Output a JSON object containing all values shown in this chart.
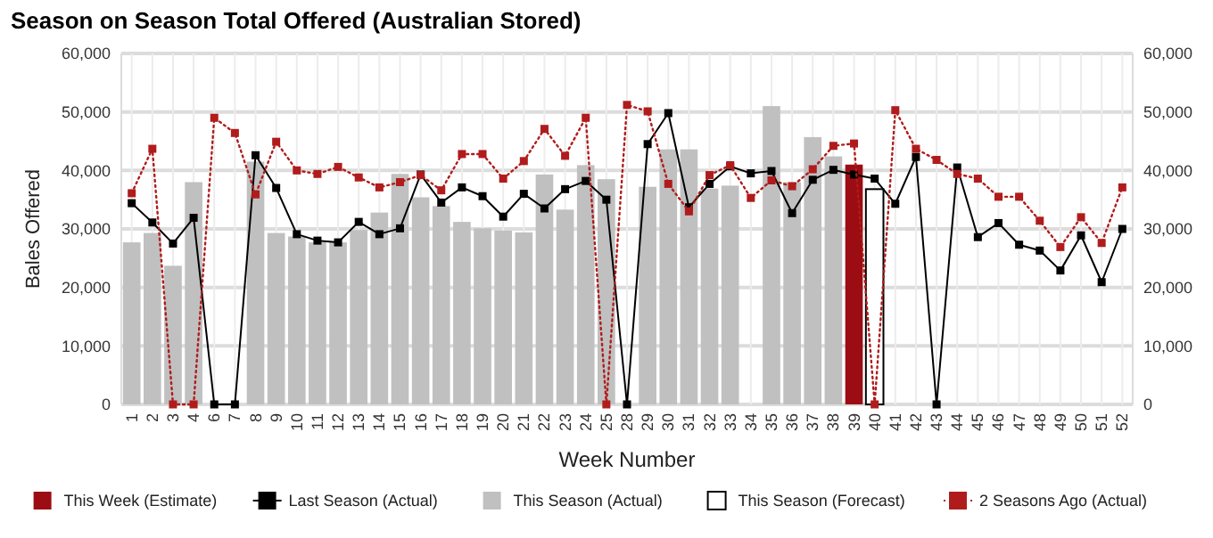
{
  "chart_data": {
    "type": "bar",
    "title": "Season on Season Total Offered (Australian Stored)",
    "xlabel": "Week Number",
    "ylabel": "Bales Offered",
    "categories": [
      "1",
      "2",
      "3",
      "4",
      "6",
      "7",
      "8",
      "9",
      "10",
      "11",
      "12",
      "13",
      "14",
      "15",
      "16",
      "17",
      "18",
      "19",
      "20",
      "21",
      "22",
      "23",
      "24",
      "25",
      "28",
      "29",
      "30",
      "31",
      "32",
      "33",
      "34",
      "35",
      "36",
      "37",
      "38",
      "39",
      "40",
      "41",
      "42",
      "43",
      "44",
      "45",
      "46",
      "47",
      "48",
      "49",
      "50",
      "51",
      "52"
    ],
    "series": [
      {
        "name": "This Week (Estimate)",
        "color": "#9b0d12",
        "values": [
          null,
          null,
          null,
          null,
          null,
          null,
          null,
          null,
          null,
          null,
          null,
          null,
          null,
          null,
          null,
          null,
          null,
          null,
          null,
          null,
          null,
          null,
          null,
          null,
          null,
          null,
          null,
          null,
          null,
          null,
          null,
          null,
          null,
          null,
          null,
          41000,
          null,
          null,
          null,
          null,
          null,
          null,
          null,
          null,
          null,
          null,
          null,
          null,
          null
        ]
      },
      {
        "name": "Last Season (Actual)",
        "type": "line",
        "color": "#000000",
        "marker": "square",
        "line_style": "solid",
        "values": [
          34400,
          31100,
          27500,
          31900,
          0,
          0,
          42600,
          37000,
          29100,
          28000,
          27700,
          31200,
          29100,
          30100,
          39300,
          34500,
          37100,
          35600,
          32100,
          36000,
          33500,
          36800,
          38200,
          35000,
          0,
          44500,
          49800,
          33700,
          37700,
          40700,
          39500,
          39900,
          32700,
          38400,
          40100,
          39300,
          38600,
          34300,
          42300,
          0,
          40500,
          28600,
          31000,
          27300,
          26300,
          22900,
          28900,
          20900,
          30000
        ]
      },
      {
        "name": "This Season (Actual)",
        "color": "#c0c0c0",
        "values": [
          27700,
          29300,
          23700,
          38000,
          null,
          null,
          41500,
          29300,
          28700,
          27700,
          27700,
          29800,
          32800,
          39400,
          35400,
          33900,
          31200,
          30100,
          29700,
          29400,
          39300,
          33300,
          40900,
          38500,
          null,
          37200,
          43600,
          43600,
          36900,
          37400,
          null,
          51000,
          38000,
          45700,
          42400,
          null,
          null,
          null,
          null,
          null,
          null,
          null,
          null,
          null,
          null,
          null,
          null,
          null,
          null
        ]
      },
      {
        "name": "This Season (Forecast)",
        "color": "#ffffff",
        "values": [
          null,
          null,
          null,
          null,
          null,
          null,
          null,
          null,
          null,
          null,
          null,
          null,
          null,
          null,
          null,
          null,
          null,
          null,
          null,
          null,
          null,
          null,
          null,
          null,
          null,
          null,
          null,
          null,
          null,
          null,
          null,
          null,
          null,
          null,
          null,
          null,
          36800,
          null,
          null,
          null,
          null,
          null,
          null,
          null,
          null,
          null,
          null,
          null,
          null
        ]
      },
      {
        "name": "2 Seasons Ago (Actual)",
        "type": "line",
        "color": "#b01c1c",
        "marker": "square",
        "line_style": "dotted",
        "values": [
          36100,
          43700,
          0,
          0,
          49000,
          46400,
          35900,
          44900,
          40000,
          39400,
          40600,
          38800,
          37100,
          38000,
          39200,
          36600,
          42800,
          42800,
          38600,
          41600,
          47100,
          42500,
          49000,
          0,
          51200,
          50100,
          37700,
          33000,
          39200,
          40900,
          35300,
          38300,
          37300,
          40200,
          44200,
          44600,
          0,
          50300,
          43700,
          41800,
          39400,
          38600,
          35500,
          35500,
          31400,
          26900,
          32000,
          27600,
          37100
        ]
      }
    ],
    "ylim": [
      0,
      60000
    ],
    "yticks": [
      {
        "value": 0,
        "label": "0"
      },
      {
        "value": 10000,
        "label": "10,000"
      },
      {
        "value": 20000,
        "label": "20,000"
      },
      {
        "value": 30000,
        "label": "30,000"
      },
      {
        "value": 40000,
        "label": "40,000"
      },
      {
        "value": 50000,
        "label": "50,000"
      },
      {
        "value": 60000,
        "label": "60,000"
      }
    ],
    "y2lim": [
      0,
      60000
    ],
    "y2ticks": [
      {
        "value": 0,
        "label": "0"
      },
      {
        "value": 10000,
        "label": "10,000"
      },
      {
        "value": 20000,
        "label": "20,000"
      },
      {
        "value": 30000,
        "label": "30,000"
      },
      {
        "value": 40000,
        "label": "40,000"
      },
      {
        "value": 50000,
        "label": "50,000"
      },
      {
        "value": 60000,
        "label": "60,000"
      }
    ],
    "grid": true,
    "legend": "bottom"
  }
}
